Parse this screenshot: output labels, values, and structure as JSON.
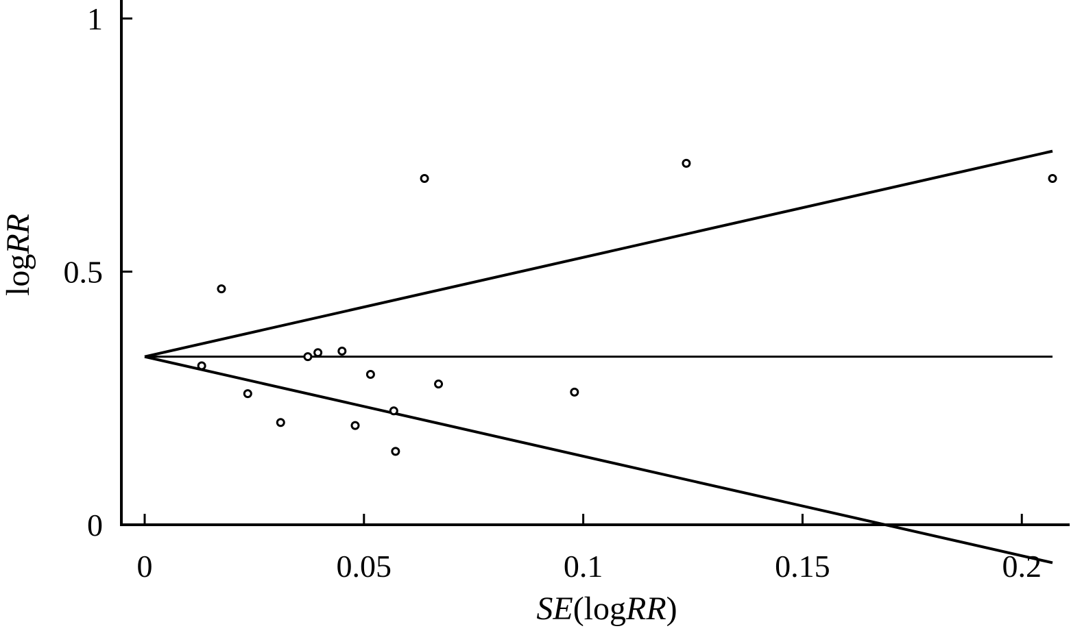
{
  "chart_data": {
    "type": "scatter",
    "title": "",
    "xlabel": {
      "italic": "SE",
      "open": "(log",
      "italic2": "RR",
      "close": ")"
    },
    "ylabel": {
      "plain": "log",
      "italic": "RR"
    },
    "xlim": [
      -0.005,
      0.207
    ],
    "ylim": [
      0,
      1.0
    ],
    "x_ticks": [
      {
        "value": 0,
        "label": "0"
      },
      {
        "value": 0.05,
        "label": "0.05"
      },
      {
        "value": 0.1,
        "label": "0.1"
      },
      {
        "value": 0.15,
        "label": "0.15"
      },
      {
        "value": 0.2,
        "label": "0.2"
      }
    ],
    "y_ticks": [
      {
        "value": 0,
        "label": "0"
      },
      {
        "value": 0.5,
        "label": "0.5"
      },
      {
        "value": 1,
        "label": "1"
      }
    ],
    "points": [
      {
        "x": 0.013,
        "y": 0.314
      },
      {
        "x": 0.0175,
        "y": 0.466
      },
      {
        "x": 0.0235,
        "y": 0.259
      },
      {
        "x": 0.031,
        "y": 0.202
      },
      {
        "x": 0.0372,
        "y": 0.332
      },
      {
        "x": 0.0395,
        "y": 0.34
      },
      {
        "x": 0.045,
        "y": 0.343
      },
      {
        "x": 0.048,
        "y": 0.196
      },
      {
        "x": 0.0515,
        "y": 0.297
      },
      {
        "x": 0.0568,
        "y": 0.225
      },
      {
        "x": 0.0572,
        "y": 0.145
      },
      {
        "x": 0.0638,
        "y": 0.684
      },
      {
        "x": 0.067,
        "y": 0.278
      },
      {
        "x": 0.098,
        "y": 0.262
      },
      {
        "x": 0.1235,
        "y": 0.714
      },
      {
        "x": 0.207,
        "y": 0.684
      }
    ],
    "pooled_line": {
      "y": 0.332,
      "x_start": 0,
      "x_end": 0.207
    },
    "funnel_upper": [
      {
        "x": 0,
        "y": 0.332
      },
      {
        "x": 0.207,
        "y": 0.738
      }
    ],
    "funnel_lower": [
      {
        "x": 0,
        "y": 0.332
      },
      {
        "x": 0.207,
        "y": -0.075
      }
    ]
  }
}
